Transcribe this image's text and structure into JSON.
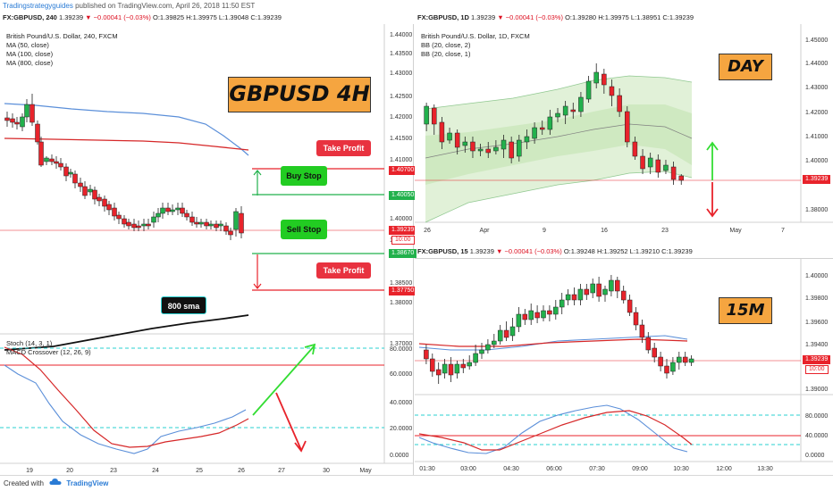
{
  "topbar": {
    "brand": "Tradingstrategyguides",
    "text": " published on TradingView.com, April 26, 2018 11:50 EST"
  },
  "left": {
    "header": {
      "symbol": "FX:GBPUSD, 240",
      "last": "1.39239",
      "change": "▼ −0.00041 (−0.03%)",
      "o": "O:1.39825",
      "h": "H:1.39975",
      "l": "L:1.39048",
      "c": "C:1.39239"
    },
    "legend": [
      "British Pound/U.S. Dollar, 240, FXCM",
      "MA (50, close)",
      "MA (100, close)",
      "MA (800, close)"
    ],
    "title": "GBPUSD 4H",
    "buy_stop": "Buy Stop",
    "sell_stop": "Sell Stop",
    "take_profit_top": "Take Profit",
    "take_profit_bottom": "Take Profit",
    "sma_label": "800 sma",
    "price_axis": [
      "1.44000",
      "1.43500",
      "1.43000",
      "1.42500",
      "1.42000",
      "1.41500",
      "1.41000",
      "1.40500",
      "1.40000",
      "1.39500",
      "1.38500",
      "1.38000",
      "1.37500",
      "1.37000"
    ],
    "price_labels": {
      "buy_take_profit": "1.40700",
      "buy_stop": "1.40050",
      "last": "1.39239",
      "timer": "10:00",
      "sell_stop": "1.38670",
      "sell_take_profit": "1.37750"
    },
    "osc_legend": [
      "Stoch (14, 3, 1)",
      "MACD Crossover (12, 26, 9)"
    ],
    "osc_axis": [
      "80.0000",
      "60.0000",
      "40.0000",
      "20.0000",
      "0.0000"
    ],
    "time_axis": [
      "19",
      "20",
      "23",
      "24",
      "25",
      "26",
      "27",
      "30",
      "May"
    ]
  },
  "right_top": {
    "header": {
      "symbol": "FX:GBPUSD, 1D",
      "last": "1.39239",
      "change": "▼ −0.00041 (−0.03%)",
      "o": "O:1.39280",
      "h": "H:1.39975",
      "l": "L:1.38951",
      "c": "C:1.39239"
    },
    "legend": [
      "British Pound/U.S. Dollar, 1D, FXCM",
      "BB (20, close, 2)",
      "BB (20, close, 1)"
    ],
    "title": "DAY",
    "price_axis": [
      "1.45000",
      "1.44000",
      "1.43000",
      "1.42000",
      "1.41000",
      "1.40000",
      "1.39000",
      "1.38000"
    ],
    "last_label": "1.39239",
    "time_axis": [
      "26",
      "Apr",
      "9",
      "16",
      "23",
      "May",
      "7"
    ]
  },
  "right_bottom": {
    "header": {
      "symbol": "FX:GBPUSD, 15",
      "last": "1.39239",
      "change": "▼ −0.00041 (−0.03%)",
      "o": "O:1.39248",
      "h": "H:1.39252",
      "l": "L:1.39210",
      "c": "C:1.39239"
    },
    "title": "15M",
    "price_axis": [
      "1.40000",
      "1.39800",
      "1.39600",
      "1.39400",
      "1.39000"
    ],
    "last_label": "1.39239",
    "timer": "10:00",
    "osc_axis": [
      "80.0000",
      "40.0000",
      "0.0000"
    ],
    "time_axis": [
      "01:30",
      "03:00",
      "04:30",
      "06:00",
      "07:30",
      "09:00",
      "10:30",
      "12:00",
      "13:30"
    ]
  },
  "footer": {
    "created_with": "Created with",
    "brand": "TradingView"
  },
  "colors": {
    "up": "#22b14c",
    "down": "#e8232b",
    "ma50": "#5b8fd9",
    "ma100": "#d62728",
    "ma800": "#111111",
    "stoch": "#5b8fd9",
    "macd": "#d62728",
    "bb_fill": "#c8e6b8",
    "orange_label": "#f5a540",
    "tp_box": "#e8323f",
    "stop_box": "#22cc22"
  },
  "icons": [
    "tradingview-cloud-icon",
    "arrow-up-icon",
    "arrow-down-icon"
  ]
}
